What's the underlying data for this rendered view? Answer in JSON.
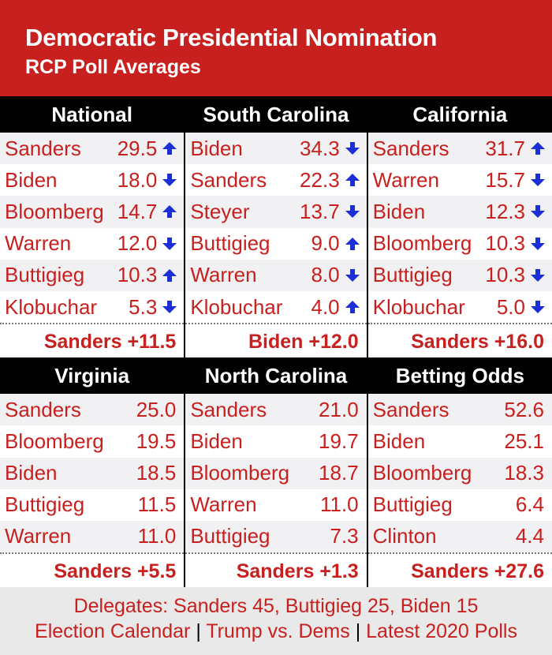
{
  "header": {
    "title": "Democratic Presidential Nomination",
    "subtitle": "RCP Poll Averages"
  },
  "panels": [
    {
      "title": "National",
      "rows": [
        {
          "name": "Sanders",
          "value": "29.5",
          "trend": "up"
        },
        {
          "name": "Biden",
          "value": "18.0",
          "trend": "down"
        },
        {
          "name": "Bloomberg",
          "value": "14.7",
          "trend": "up"
        },
        {
          "name": "Warren",
          "value": "12.0",
          "trend": "down"
        },
        {
          "name": "Buttigieg",
          "value": "10.3",
          "trend": "up"
        },
        {
          "name": "Klobuchar",
          "value": "5.3",
          "trend": "down"
        }
      ],
      "leader": "Sanders +11.5"
    },
    {
      "title": "South Carolina",
      "rows": [
        {
          "name": "Biden",
          "value": "34.3",
          "trend": "down"
        },
        {
          "name": "Sanders",
          "value": "22.3",
          "trend": "up"
        },
        {
          "name": "Steyer",
          "value": "13.7",
          "trend": "down"
        },
        {
          "name": "Buttigieg",
          "value": "9.0",
          "trend": "up"
        },
        {
          "name": "Warren",
          "value": "8.0",
          "trend": "down"
        },
        {
          "name": "Klobuchar",
          "value": "4.0",
          "trend": "up"
        }
      ],
      "leader": "Biden +12.0"
    },
    {
      "title": "California",
      "rows": [
        {
          "name": "Sanders",
          "value": "31.7",
          "trend": "up"
        },
        {
          "name": "Warren",
          "value": "15.7",
          "trend": "down"
        },
        {
          "name": "Biden",
          "value": "12.3",
          "trend": "down"
        },
        {
          "name": "Bloomberg",
          "value": "10.3",
          "trend": "down"
        },
        {
          "name": "Buttigieg",
          "value": "10.3",
          "trend": "down"
        },
        {
          "name": "Klobuchar",
          "value": "5.0",
          "trend": "down"
        }
      ],
      "leader": "Sanders +16.0"
    },
    {
      "title": "Virginia",
      "rows": [
        {
          "name": "Sanders",
          "value": "25.0",
          "trend": ""
        },
        {
          "name": "Bloomberg",
          "value": "19.5",
          "trend": ""
        },
        {
          "name": "Biden",
          "value": "18.5",
          "trend": ""
        },
        {
          "name": "Buttigieg",
          "value": "11.5",
          "trend": ""
        },
        {
          "name": "Warren",
          "value": "11.0",
          "trend": ""
        }
      ],
      "leader": "Sanders +5.5"
    },
    {
      "title": "North Carolina",
      "rows": [
        {
          "name": "Sanders",
          "value": "21.0",
          "trend": ""
        },
        {
          "name": "Biden",
          "value": "19.7",
          "trend": ""
        },
        {
          "name": "Bloomberg",
          "value": "18.7",
          "trend": ""
        },
        {
          "name": "Warren",
          "value": "11.0",
          "trend": ""
        },
        {
          "name": "Buttigieg",
          "value": "7.3",
          "trend": ""
        }
      ],
      "leader": "Sanders +1.3"
    },
    {
      "title": "Betting Odds",
      "rows": [
        {
          "name": "Sanders",
          "value": "52.6",
          "trend": ""
        },
        {
          "name": "Biden",
          "value": "25.1",
          "trend": ""
        },
        {
          "name": "Bloomberg",
          "value": "18.3",
          "trend": ""
        },
        {
          "name": "Buttigieg",
          "value": "6.4",
          "trend": ""
        },
        {
          "name": "Clinton",
          "value": "4.4",
          "trend": ""
        }
      ],
      "leader": "Sanders +27.6"
    }
  ],
  "footer": {
    "delegates": "Delegates: Sanders 45, Buttigieg 25, Biden 15",
    "links": [
      "Election Calendar",
      "Trump vs. Dems",
      "Latest 2020 Polls"
    ],
    "separator": "|"
  },
  "colors": {
    "brand_red": "#c8201e",
    "arrow_blue": "#1a2fd6",
    "header_black": "#000000"
  },
  "icons": {
    "up": "arrow-up-icon",
    "down": "arrow-down-icon"
  }
}
